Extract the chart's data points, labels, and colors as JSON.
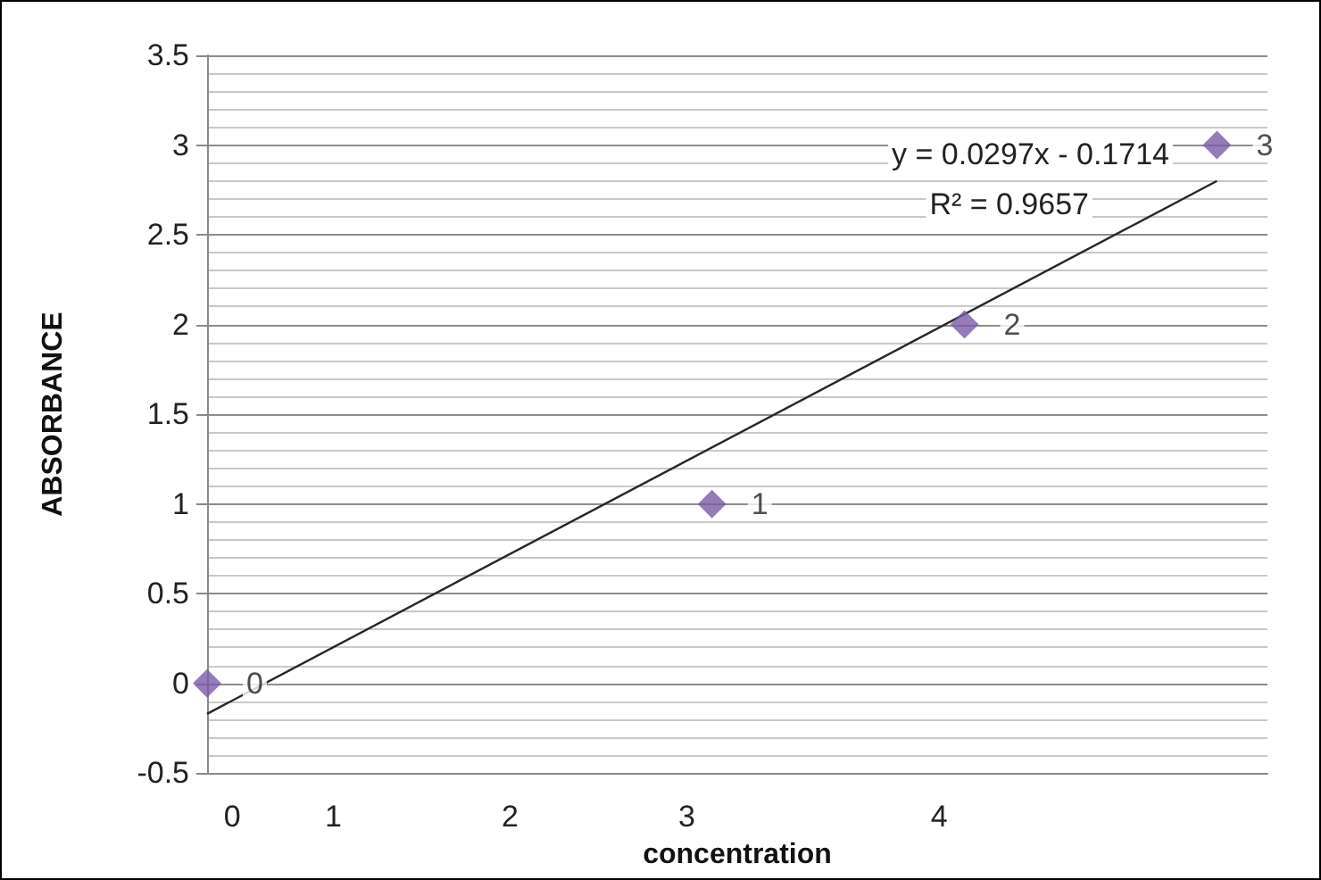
{
  "chart_data": {
    "type": "scatter",
    "xlabel": "concentration",
    "ylabel": "ABSORBANCE",
    "categories": [
      null,
      "0",
      null,
      null,
      null,
      "1",
      null,
      null,
      null,
      null,
      null,
      null,
      "2",
      null,
      null,
      null,
      null,
      null,
      null,
      "3",
      null,
      null,
      null,
      null,
      null,
      null,
      null,
      null,
      null,
      "4",
      null,
      null,
      null,
      null,
      null,
      null,
      null,
      null,
      null,
      null,
      null,
      null,
      null
    ],
    "series": [
      {
        "type": "scatter",
        "color": "#7b5ba6",
        "marker": "diamond",
        "values": [
          0,
          null,
          null,
          null,
          null,
          null,
          null,
          null,
          null,
          null,
          null,
          null,
          null,
          null,
          null,
          null,
          null,
          null,
          null,
          null,
          1,
          null,
          null,
          null,
          null,
          null,
          null,
          null,
          null,
          null,
          2,
          null,
          null,
          null,
          null,
          null,
          null,
          null,
          null,
          null,
          3,
          null,
          null
        ],
        "value_labels": [
          "0",
          null,
          null,
          null,
          null,
          null,
          null,
          null,
          null,
          null,
          null,
          null,
          null,
          null,
          null,
          null,
          null,
          null,
          null,
          null,
          "1",
          null,
          null,
          null,
          null,
          null,
          null,
          null,
          null,
          null,
          "2",
          null,
          null,
          null,
          null,
          null,
          null,
          null,
          null,
          null,
          "3",
          null,
          null
        ]
      },
      {
        "type": "line",
        "color": "#262626",
        "marker": "none",
        "line_style": "solid",
        "values": [
          -0.17,
          null,
          null,
          null,
          null,
          null,
          null,
          null,
          null,
          null,
          null,
          null,
          null,
          null,
          null,
          null,
          null,
          null,
          null,
          null,
          null,
          null,
          null,
          null,
          null,
          null,
          null,
          null,
          null,
          null,
          null,
          null,
          null,
          null,
          null,
          null,
          null,
          null,
          null,
          null,
          2.8,
          null,
          null
        ]
      }
    ],
    "annotations": [
      "y = 0.0297x - 0.1714",
      "R² = 0.9657"
    ],
    "ylim": [
      -0.5,
      3.5
    ],
    "yticks": [
      -0.5,
      0,
      0.5,
      1,
      1.5,
      2,
      2.5,
      3,
      3.5
    ],
    "grid": "y"
  }
}
